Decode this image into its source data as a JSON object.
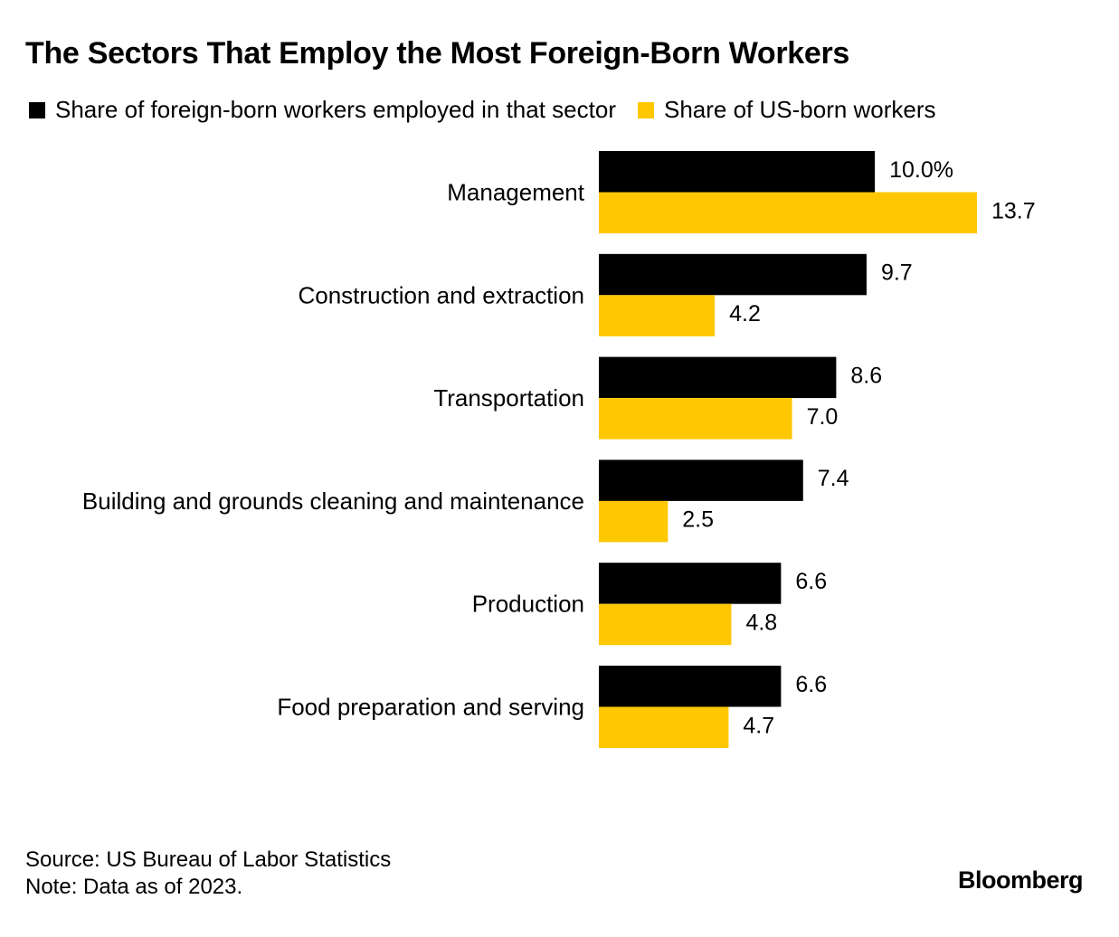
{
  "chart_data": {
    "type": "bar",
    "orientation": "horizontal",
    "title": "The Sectors That Employ the Most Foreign-Born Workers",
    "categories": [
      "Management",
      "Construction and extraction",
      "Transportation",
      "Building and grounds cleaning and maintenance",
      "Production",
      "Food preparation and serving"
    ],
    "series": [
      {
        "name": "Share of foreign-born workers employed in that sector",
        "color": "#000000",
        "values": [
          10.0,
          9.7,
          8.6,
          7.4,
          6.6,
          6.6
        ],
        "labels": [
          "10.0%",
          "9.7",
          "8.6",
          "7.4",
          "6.6",
          "6.6"
        ]
      },
      {
        "name": "Share of US-born workers",
        "color": "#FFC700",
        "values": [
          13.7,
          4.2,
          7.0,
          2.5,
          4.8,
          4.7
        ],
        "labels": [
          "13.7",
          "4.2",
          "7.0",
          "2.5",
          "4.8",
          "4.7"
        ]
      }
    ],
    "xlim": [
      0,
      13.7
    ],
    "legend_position": "top",
    "grid": false
  },
  "footer": {
    "source": "Source: US Bureau of Labor Statistics",
    "note": "Note: Data as of 2023."
  },
  "brand": "Bloomberg"
}
